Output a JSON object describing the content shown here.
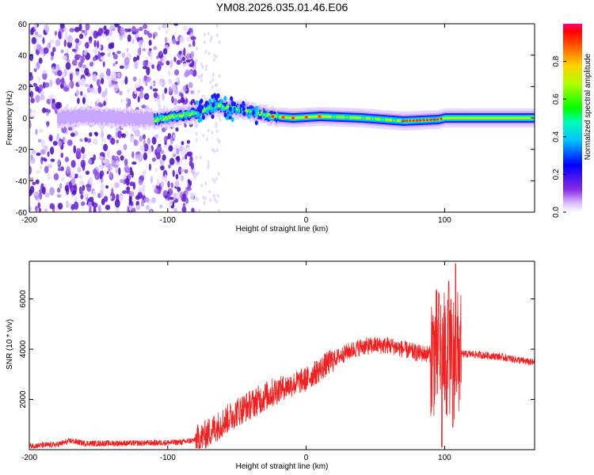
{
  "title": "YM08.2026.035.01.46.E06",
  "colors": {
    "snr_line": "#ee2222",
    "axis": "#000000",
    "background": "#ffffff"
  },
  "chart_data": [
    {
      "type": "heatmap",
      "name": "spectrogram",
      "xlabel": "Height of straight line (km)",
      "ylabel": "Frequency (Hz)",
      "xlim": [
        -200,
        165
      ],
      "ylim": [
        -60,
        60
      ],
      "xticks": [
        -200,
        -100,
        0,
        100
      ],
      "yticks": [
        -60,
        -40,
        -20,
        0,
        20,
        40,
        60
      ],
      "colorbar": {
        "label": "Normalized spectral amplitude",
        "range": [
          0.0,
          1.0
        ],
        "ticks": [
          0.0,
          0.2,
          0.4,
          0.6,
          0.8
        ],
        "tick_labels": [
          "0.0",
          "0.2",
          "0.4",
          "0.6",
          "0.8"
        ]
      },
      "regions": [
        {
          "desc": "broadband noise",
          "x": [
            -200,
            -80
          ],
          "freq_range": [
            -60,
            60
          ],
          "amplitude": 0.08
        },
        {
          "desc": "sparse noise",
          "x": [
            -80,
            -62
          ],
          "freq_range": [
            -60,
            60
          ],
          "amplitude": 0.03
        },
        {
          "desc": "signal band",
          "x": [
            -110,
            165
          ],
          "center_freq": 0,
          "amplitude": 0.6
        }
      ],
      "ridge": [
        {
          "x": -180,
          "f": 0
        },
        {
          "x": -160,
          "f": 1
        },
        {
          "x": -110,
          "f": -1
        },
        {
          "x": -95,
          "f": 1
        },
        {
          "x": -80,
          "f": 3
        },
        {
          "x": -65,
          "f": 8
        },
        {
          "x": -55,
          "f": 6
        },
        {
          "x": -45,
          "f": 5
        },
        {
          "x": -35,
          "f": 3
        },
        {
          "x": -25,
          "f": 1
        },
        {
          "x": -10,
          "f": 0
        },
        {
          "x": 10,
          "f": 1
        },
        {
          "x": 40,
          "f": 0
        },
        {
          "x": 70,
          "f": -2
        },
        {
          "x": 95,
          "f": -1
        },
        {
          "x": 100,
          "f": 0
        },
        {
          "x": 130,
          "f": 0
        },
        {
          "x": 165,
          "f": 0
        }
      ]
    },
    {
      "type": "line",
      "name": "snr",
      "xlabel": "Height of straight line (km)",
      "ylabel": "SNR (10 * v/v)",
      "xlim": [
        -200,
        165
      ],
      "ylim": [
        0,
        7500
      ],
      "xticks": [
        -200,
        -100,
        0,
        100
      ],
      "yticks": [
        2000,
        4000,
        6000
      ],
      "series": [
        {
          "name": "SNR",
          "envelope_x": [
            -200,
            -180,
            -170,
            -160,
            -140,
            -120,
            -100,
            -90,
            -80,
            -75,
            -70,
            -65,
            -60,
            -55,
            -50,
            -45,
            -40,
            -30,
            -20,
            -10,
            0,
            10,
            20,
            30,
            40,
            50,
            60,
            70,
            80,
            90,
            95,
            100,
            105,
            110,
            120,
            140,
            165
          ],
          "envelope_y": [
            150,
            200,
            350,
            250,
            250,
            260,
            280,
            300,
            380,
            500,
            700,
            900,
            1100,
            1300,
            1500,
            1650,
            1800,
            2100,
            2400,
            2600,
            2800,
            3200,
            3600,
            3900,
            4100,
            4150,
            4150,
            4000,
            3850,
            3800,
            3900,
            3700,
            3600,
            3800,
            3800,
            3700,
            3450
          ],
          "noise": [
            {
              "x": [
                -200,
                -80
              ],
              "amplitude": 120
            },
            {
              "x": [
                -80,
                -20
              ],
              "amplitude": 600
            },
            {
              "x": [
                -20,
                20
              ],
              "amplitude": 500
            },
            {
              "x": [
                20,
                90
              ],
              "amplitude": 350
            },
            {
              "x": [
                90,
                112
              ],
              "amplitude": 2600
            },
            {
              "x": [
                112,
                165
              ],
              "amplitude": 150
            }
          ],
          "peaks": [
            {
              "x": 96,
              "y": 6200
            },
            {
              "x": 98,
              "y": 100
            },
            {
              "x": 103,
              "y": 6700
            },
            {
              "x": 106,
              "y": 900
            },
            {
              "x": 108,
              "y": 7400
            }
          ]
        }
      ]
    }
  ]
}
